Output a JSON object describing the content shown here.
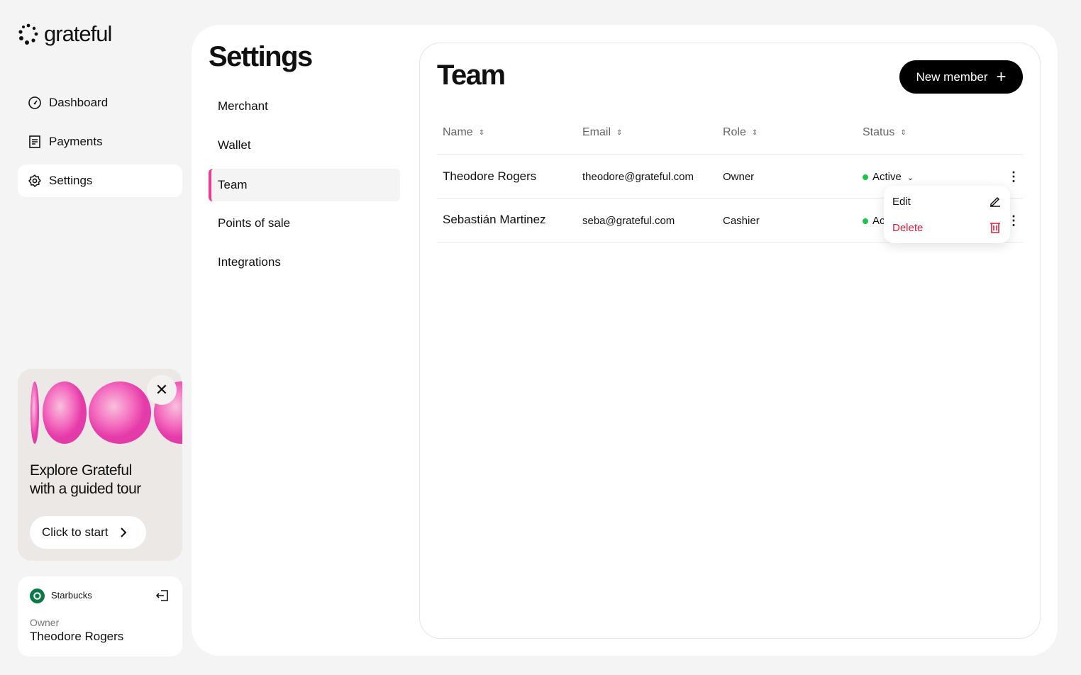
{
  "brand": {
    "name": "grateful"
  },
  "sidebar": {
    "items": [
      {
        "label": "Dashboard",
        "icon": "gauge-icon"
      },
      {
        "label": "Payments",
        "icon": "document-icon"
      },
      {
        "label": "Settings",
        "icon": "gear-icon",
        "active": true
      }
    ]
  },
  "promo": {
    "title_line1": "Explore Grateful",
    "title_line2": "with a guided tour",
    "button": "Click to start"
  },
  "account": {
    "merchant": "Starbucks",
    "role": "Owner",
    "user": "Theodore Rogers"
  },
  "settings": {
    "title": "Settings",
    "items": [
      {
        "label": "Merchant"
      },
      {
        "label": "Wallet"
      },
      {
        "label": "Team",
        "active": true
      },
      {
        "label": "Points of sale"
      },
      {
        "label": "Integrations"
      }
    ]
  },
  "team": {
    "title": "Team",
    "new_member": "New member",
    "columns": [
      "Name",
      "Email",
      "Role",
      "Status"
    ],
    "rows": [
      {
        "name": "Theodore Rogers",
        "email": "theodore@grateful.com",
        "role": "Owner",
        "status": "Active"
      },
      {
        "name": "Sebastián Martinez",
        "email": "seba@grateful.com",
        "role": "Cashier",
        "status": "Ac"
      }
    ],
    "menu": {
      "edit": "Edit",
      "delete": "Delete"
    }
  },
  "colors": {
    "accent": "#ee3b8f",
    "active_status": "#1fc24b",
    "danger": "#d8203d"
  }
}
